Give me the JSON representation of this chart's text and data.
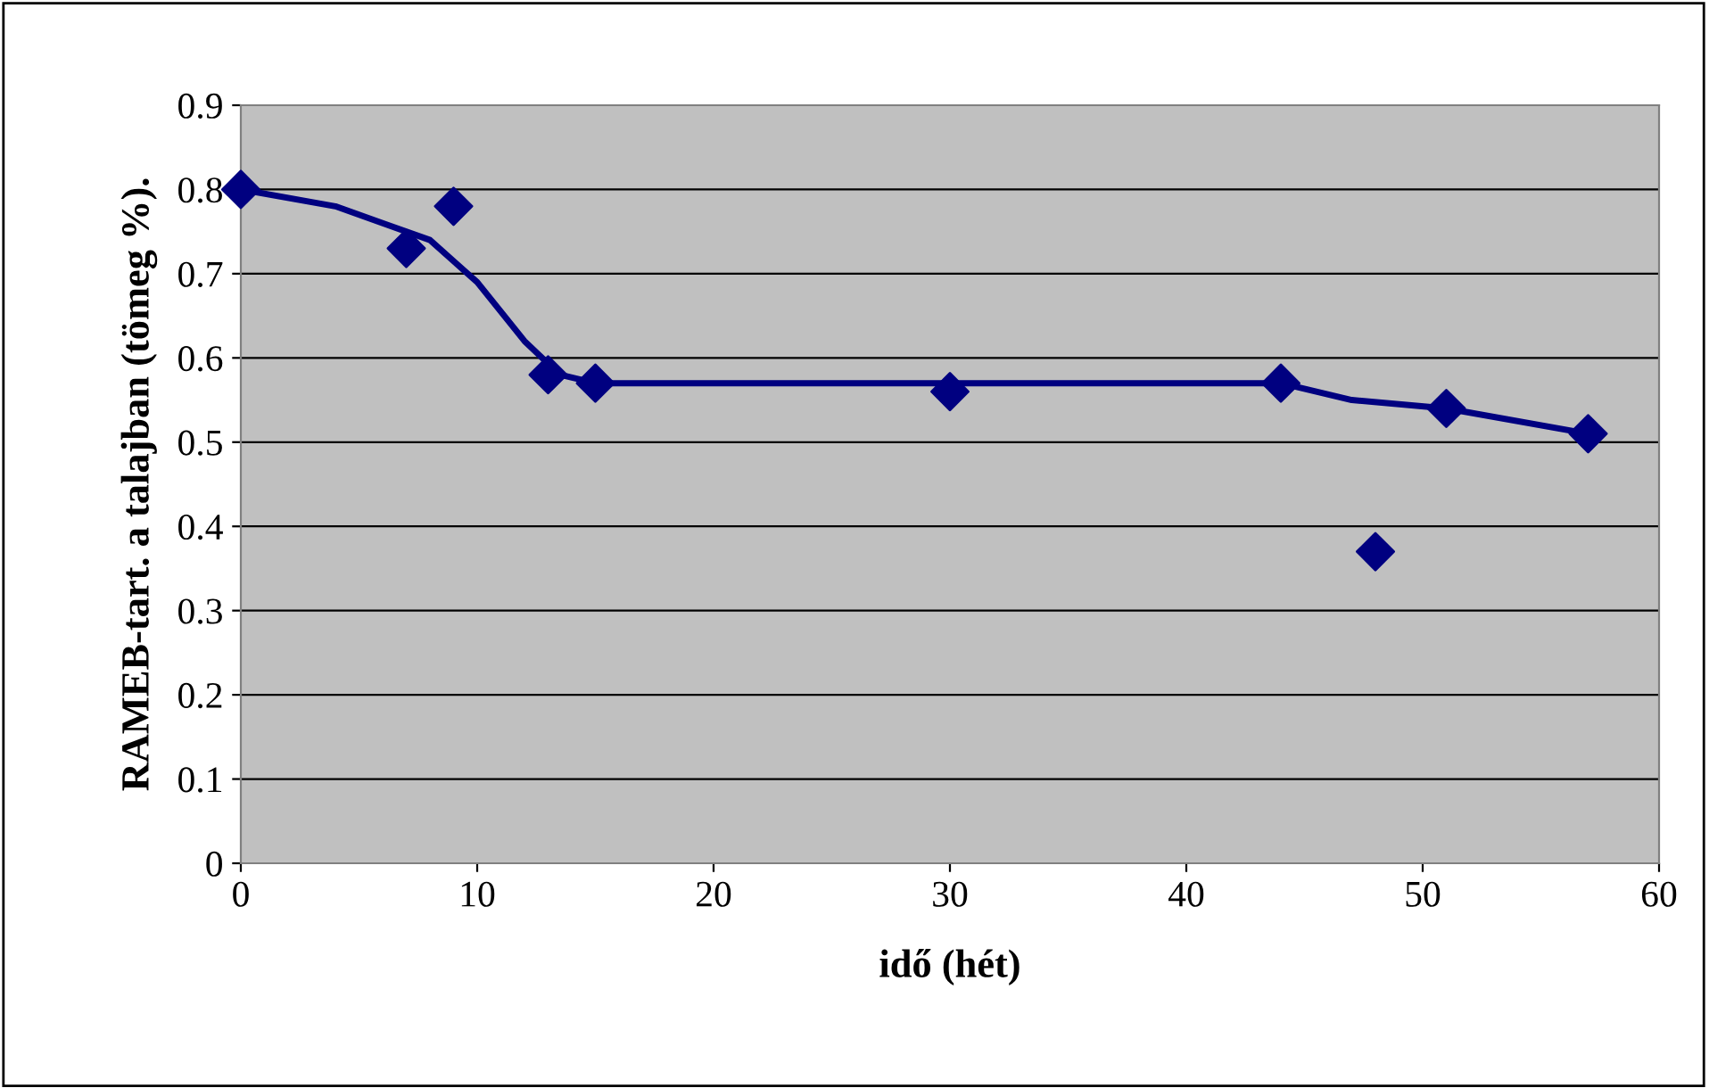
{
  "chart_data": {
    "type": "scatter",
    "xlabel": "idő (hét)",
    "ylabel": "RAMEB-tart. a talajban (tömeg %).",
    "xlim": [
      0,
      60
    ],
    "xticks": [
      0,
      10,
      20,
      30,
      40,
      50,
      60
    ],
    "ylim": [
      0,
      0.9
    ],
    "yticks": [
      0,
      0.1,
      0.2,
      0.3,
      0.4,
      0.5,
      0.6,
      0.7,
      0.8,
      0.9
    ],
    "grid": "y",
    "legend": false,
    "series": [
      {
        "color": "#000080",
        "marker": "diamond",
        "x": [
          0,
          7,
          9,
          13,
          15,
          30,
          44,
          48,
          51,
          57
        ],
        "values": [
          0.8,
          0.73,
          0.78,
          0.58,
          0.57,
          0.56,
          0.57,
          0.37,
          0.54,
          0.51
        ]
      },
      {
        "type": "line",
        "color": "#000080",
        "marker": "none",
        "line_style": "solid",
        "x": [
          0,
          4,
          6,
          8,
          10,
          12,
          13.5,
          15,
          30,
          44,
          47,
          51,
          57
        ],
        "values": [
          0.8,
          0.78,
          0.76,
          0.74,
          0.69,
          0.62,
          0.58,
          0.57,
          0.57,
          0.57,
          0.55,
          0.54,
          0.51
        ]
      }
    ]
  }
}
